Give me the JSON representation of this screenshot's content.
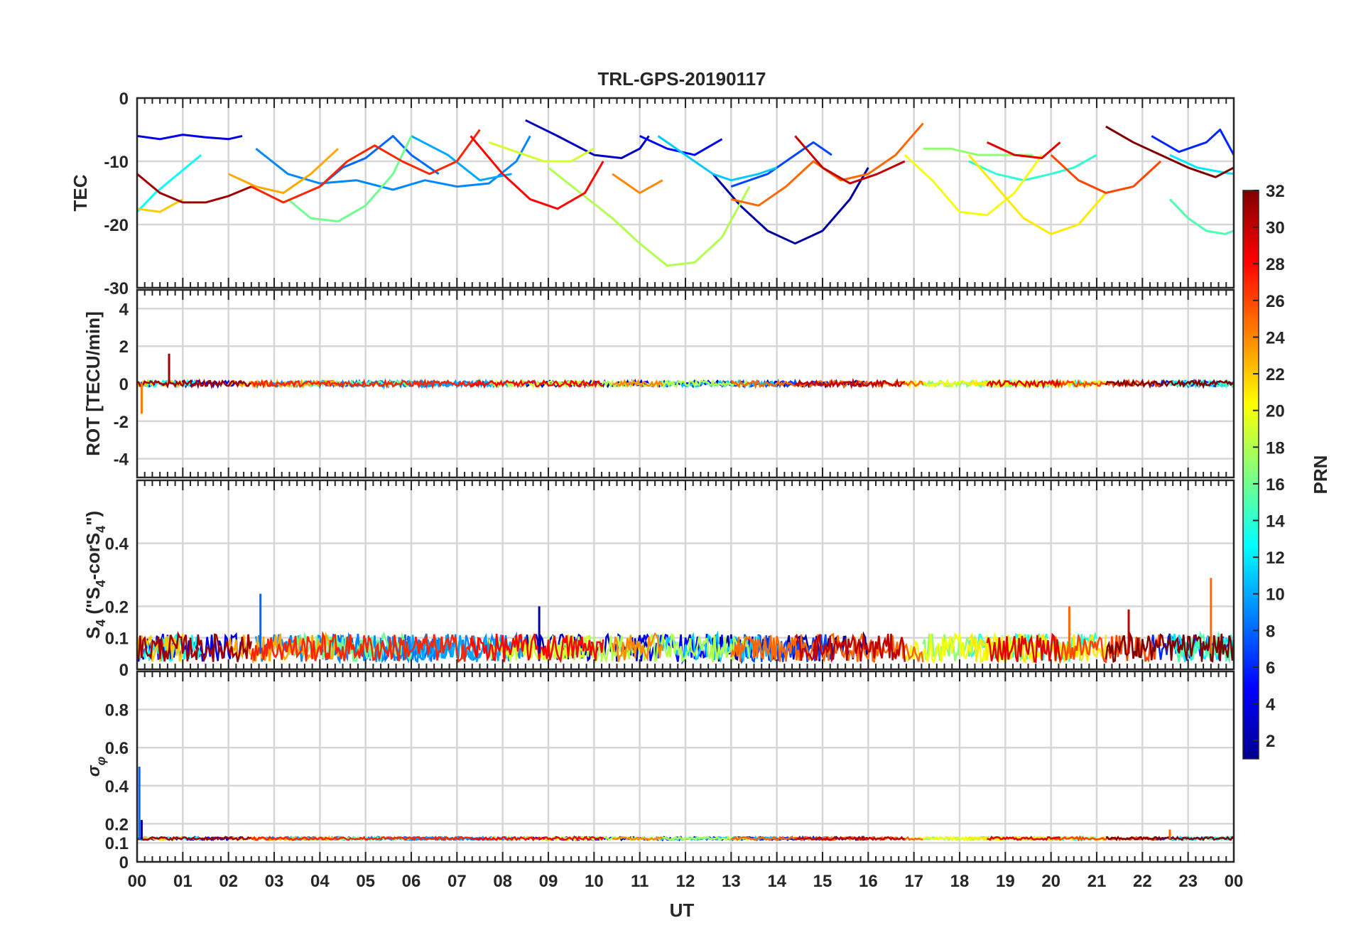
{
  "title": "TRL-GPS-20190117",
  "x_axis": {
    "label": "UT",
    "ticks": [
      "00",
      "01",
      "02",
      "03",
      "04",
      "05",
      "06",
      "07",
      "08",
      "09",
      "10",
      "11",
      "12",
      "13",
      "14",
      "15",
      "16",
      "17",
      "18",
      "19",
      "20",
      "21",
      "22",
      "23",
      "00"
    ],
    "range_hours": [
      0,
      24
    ]
  },
  "colorbar": {
    "label": "PRN",
    "ticks": [
      "2",
      "4",
      "6",
      "8",
      "10",
      "12",
      "14",
      "16",
      "18",
      "20",
      "22",
      "24",
      "26",
      "28",
      "30",
      "32"
    ],
    "range": [
      1,
      32
    ],
    "colormap": "jet"
  },
  "panels": [
    {
      "id": "tec",
      "ylabel": "TEC",
      "yticks": [
        "0",
        "-10",
        "-20",
        "-30"
      ],
      "ylim": [
        -30,
        0
      ]
    },
    {
      "id": "rot",
      "ylabel": "ROT [TECU/min]",
      "yticks": [
        "4",
        "2",
        "0",
        "-2",
        "-4"
      ],
      "ylim": [
        -5,
        5
      ]
    },
    {
      "id": "s4",
      "ylabel_main": "S",
      "ylabel_sub1": "4",
      "ylabel_mid": " (\"S",
      "ylabel_sub2": "4",
      "ylabel_mid2": "-corS",
      "ylabel_sub3": "4",
      "ylabel_end": "\")",
      "yticks": [
        "0.4",
        "0.2",
        "0.1",
        "0"
      ],
      "ylim": [
        0,
        0.6
      ]
    },
    {
      "id": "sigma",
      "ylabel_main": "σ",
      "ylabel_sub": "φ",
      "yticks": [
        "0.8",
        "0.6",
        "0.4",
        "0.2",
        "0.1",
        "0"
      ],
      "ylim": [
        0,
        1
      ]
    }
  ],
  "chart_data": {
    "type": "line",
    "title": "TRL-GPS-20190117",
    "xlabel": "UT",
    "xlim": [
      0,
      24
    ],
    "color_by": "PRN",
    "tec_series": [
      {
        "prn": 2,
        "x": [
          12.6,
          13.2,
          13.8,
          14.4,
          15.0,
          15.6,
          16.0
        ],
        "y": [
          -12,
          -17,
          -21,
          -23,
          -21,
          -16,
          -11
        ]
      },
      {
        "prn": 3,
        "x": [
          8.5,
          9.2,
          10.0,
          10.6,
          11.0,
          11.2
        ],
        "y": [
          -3.5,
          -6,
          -9,
          -9.5,
          -8,
          -6
        ]
      },
      {
        "prn": 4,
        "x": [
          0.0,
          0.5,
          1.0,
          1.5,
          2.0,
          2.3
        ],
        "y": [
          -6,
          -6.5,
          -5.8,
          -6.2,
          -6.5,
          -6
        ]
      },
      {
        "prn": 5,
        "x": [
          11.0,
          11.6,
          12.2,
          12.8
        ],
        "y": [
          -6,
          -8,
          -9,
          -6.5
        ]
      },
      {
        "prn": 6,
        "x": [
          22.2,
          22.8,
          23.4,
          23.7,
          24.0
        ],
        "y": [
          -6,
          -8.5,
          -7,
          -5,
          -9
        ]
      },
      {
        "prn": 7,
        "x": [
          13.0,
          13.8,
          14.4,
          14.8,
          15.2
        ],
        "y": [
          -14,
          -12,
          -9,
          -7,
          -9
        ]
      },
      {
        "prn": 8,
        "x": [
          4.0,
          4.5,
          5.0,
          5.6,
          6.0,
          6.6
        ],
        "y": [
          -14,
          -11,
          -9.5,
          -6,
          -9,
          -12
        ]
      },
      {
        "prn": 9,
        "x": [
          2.6,
          3.3,
          4.0,
          4.8,
          5.6,
          6.3,
          7.0,
          7.7,
          8.3,
          8.6
        ],
        "y": [
          -8,
          -12,
          -13.5,
          -13,
          -14.5,
          -13,
          -14,
          -13.5,
          -10,
          -6
        ]
      },
      {
        "prn": 10,
        "x": [
          6.0,
          6.8,
          7.5,
          8.2
        ],
        "y": [
          -6,
          -9,
          -13,
          -12
        ]
      },
      {
        "prn": 11,
        "x": [
          11.4,
          12.0,
          12.6,
          13.0,
          13.6,
          14.0
        ],
        "y": [
          -6,
          -9,
          -12,
          -13,
          -12,
          -11
        ]
      },
      {
        "prn": 12,
        "x": [
          22.6,
          23.2,
          23.8,
          24.0
        ],
        "y": [
          -9,
          -11,
          -11.8,
          -12
        ]
      },
      {
        "prn": 13,
        "x": [
          0.0,
          0.4,
          0.9,
          1.4
        ],
        "y": [
          -18,
          -15,
          -12,
          -9
        ]
      },
      {
        "prn": 14,
        "x": [
          18.2,
          18.8,
          19.4,
          20.0,
          20.5,
          21.0
        ],
        "y": [
          -10,
          -12,
          -13,
          -12,
          -11,
          -9
        ]
      },
      {
        "prn": 15,
        "x": [
          22.6,
          23.0,
          23.4,
          23.8,
          24.0
        ],
        "y": [
          -16,
          -19,
          -21,
          -21.5,
          -21
        ]
      },
      {
        "prn": 16,
        "x": [
          3.3,
          3.8,
          4.4,
          5.0,
          5.6,
          6.0
        ],
        "y": [
          -16,
          -19,
          -19.5,
          -17,
          -12,
          -6
        ]
      },
      {
        "prn": 17,
        "x": [
          17.2,
          17.8,
          18.4,
          19.2,
          19.6
        ],
        "y": [
          -8,
          -8,
          -9,
          -9,
          -9
        ]
      },
      {
        "prn": 18,
        "x": [
          9.0,
          9.7,
          10.4,
          11.0,
          11.6,
          12.2,
          12.8,
          13.4
        ],
        "y": [
          -11,
          -15,
          -19,
          -23,
          -26.5,
          -26,
          -22,
          -14
        ]
      },
      {
        "prn": 19,
        "x": [
          7.7,
          8.3,
          8.9,
          9.5,
          10.0
        ],
        "y": [
          -7,
          -8.5,
          -10,
          -10,
          -8
        ]
      },
      {
        "prn": 20,
        "x": [
          16.8,
          17.4,
          18.0,
          18.6,
          19.2,
          19.8
        ],
        "y": [
          -9,
          -13,
          -18,
          -18.5,
          -15,
          -9
        ]
      },
      {
        "prn": 21,
        "x": [
          18.2,
          18.8,
          19.4,
          20.0,
          20.6,
          21.2
        ],
        "y": [
          -9,
          -14,
          -19,
          -21.5,
          -20,
          -15
        ]
      },
      {
        "prn": 22,
        "x": [
          0.0,
          0.5,
          1.0
        ],
        "y": [
          -17.5,
          -18,
          -16
        ]
      },
      {
        "prn": 23,
        "x": [
          2.0,
          2.6,
          3.2,
          3.8,
          4.4
        ],
        "y": [
          -12,
          -14,
          -15,
          -12,
          -8
        ]
      },
      {
        "prn": 24,
        "x": [
          10.4,
          11.0,
          11.5
        ],
        "y": [
          -12,
          -15,
          -13
        ]
      },
      {
        "prn": 25,
        "x": [
          13.0,
          13.6,
          14.2,
          14.8,
          15.4,
          16.0,
          16.6,
          17.2
        ],
        "y": [
          -16,
          -17,
          -14,
          -10,
          -13,
          -12,
          -9,
          -4
        ]
      },
      {
        "prn": 26,
        "x": [
          20.0,
          20.6,
          21.2,
          21.8,
          22.4
        ],
        "y": [
          -9,
          -13,
          -15,
          -14,
          -10
        ]
      },
      {
        "prn": 27,
        "x": [
          2.5,
          3.2,
          4.0,
          4.6,
          5.2,
          5.8,
          6.4,
          7.0,
          7.5
        ],
        "y": [
          -14,
          -16.5,
          -14,
          -10,
          -7.5,
          -10,
          -12,
          -10,
          -5
        ]
      },
      {
        "prn": 28,
        "x": [
          7.3,
          8.0,
          8.6,
          9.2,
          9.8,
          10.2
        ],
        "y": [
          -6,
          -12,
          -16,
          -17.5,
          -15,
          -10
        ]
      },
      {
        "prn": 29,
        "x": [
          18.6,
          19.2,
          19.8,
          20.2
        ],
        "y": [
          -7,
          -9,
          -9.5,
          -7
        ]
      },
      {
        "prn": 30,
        "x": [
          14.4,
          15.0,
          15.6,
          16.2,
          16.8
        ],
        "y": [
          -6,
          -11,
          -13.5,
          -12,
          -10
        ]
      },
      {
        "prn": 31,
        "x": [
          0.0,
          0.5,
          1.0,
          1.5,
          2.0,
          2.5
        ],
        "y": [
          -12,
          -15,
          -16.5,
          -16.5,
          -15.5,
          -14
        ]
      },
      {
        "prn": 32,
        "x": [
          21.2,
          21.8,
          22.4,
          23.0,
          23.6,
          24.0
        ],
        "y": [
          -4.5,
          -7,
          -9,
          -11,
          -12.5,
          -11
        ]
      }
    ],
    "rot_summary": {
      "baseline": 0,
      "spread": 0.15,
      "early_spikes": [
        {
          "x": 0.7,
          "y": 1.6
        },
        {
          "x": 0.1,
          "y": -1.6
        }
      ]
    },
    "s4_summary": {
      "baseline": 0.05,
      "spread": 0.1,
      "peaks": [
        {
          "x": 2.7,
          "y": 0.24
        },
        {
          "x": 8.8,
          "y": 0.2
        },
        {
          "x": 20.4,
          "y": 0.2
        },
        {
          "x": 23.5,
          "y": 0.29
        },
        {
          "x": 21.7,
          "y": 0.19
        }
      ]
    },
    "sigma_summary": {
      "baseline": 0.12,
      "spread": 0.03,
      "peaks": [
        {
          "x": 0.05,
          "y": 0.5
        },
        {
          "x": 0.1,
          "y": 0.22
        },
        {
          "x": 22.6,
          "y": 0.17
        }
      ]
    }
  }
}
